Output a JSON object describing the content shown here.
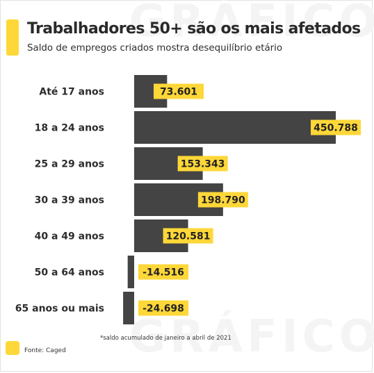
{
  "header": {
    "title": "Trabalhadores 50+ são os mais afetados",
    "subtitle": "Saldo de empregos criados mostra desequilíbrio etário"
  },
  "watermark": {
    "text": "GRÁFICO"
  },
  "footer": {
    "note": "*saldo acumulado de janeiro a abril de 2021",
    "source": "Fonte: Caged"
  },
  "colors": {
    "bar": "#444444",
    "label_bg": "#fed738",
    "accent": "#fed738"
  },
  "chart_data": {
    "type": "bar",
    "orientation": "horizontal",
    "title": "Trabalhadores 50+ são os mais afetados",
    "subtitle": "Saldo de empregos criados mostra desequilíbrio etário",
    "xlabel": "",
    "ylabel": "",
    "categories": [
      "Até 17 anos",
      "18 a 24 anos",
      "25 a 29 anos",
      "30 a 39 anos",
      "40 a 49 anos",
      "50 a 64 anos",
      "65 anos ou mais"
    ],
    "values": [
      73601,
      450788,
      153343,
      198790,
      120581,
      -14516,
      -24698
    ],
    "value_labels": [
      "73.601",
      "450.788",
      "153.343",
      "198.790",
      "120.581",
      "-14.516",
      "-24.698"
    ],
    "xlim": [
      -24698,
      450788
    ],
    "grid": false,
    "legend": "none"
  }
}
